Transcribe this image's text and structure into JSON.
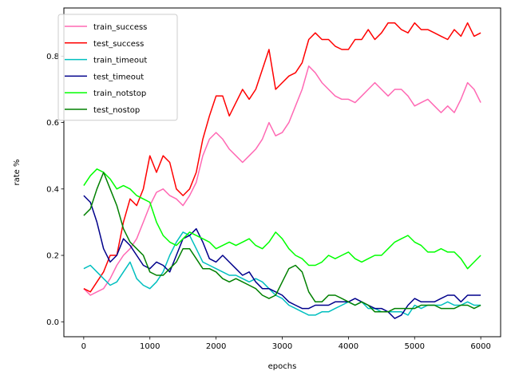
{
  "chart_data": {
    "type": "line",
    "title": "",
    "xlabel": "epochs",
    "ylabel": "rate %",
    "xlim": [
      -300,
      6300
    ],
    "ylim": [
      -0.045,
      0.945
    ],
    "xticks": [
      0,
      1000,
      2000,
      3000,
      4000,
      5000,
      6000
    ],
    "yticks": [
      0.0,
      0.2,
      0.4,
      0.6,
      0.8
    ],
    "xtick_labels": [
      "0",
      "1000",
      "2000",
      "3000",
      "4000",
      "5000",
      "6000"
    ],
    "ytick_labels": [
      "0.0",
      "0.2",
      "0.4",
      "0.6",
      "0.8"
    ],
    "grid": false,
    "legend_position": "top-left",
    "series": [
      {
        "name": "train_success",
        "color": "#ff69b4",
        "x": [
          0,
          100,
          200,
          300,
          400,
          500,
          600,
          700,
          800,
          900,
          1000,
          1100,
          1200,
          1300,
          1400,
          1500,
          1600,
          1700,
          1800,
          1900,
          2000,
          2100,
          2200,
          2300,
          2400,
          2500,
          2600,
          2700,
          2800,
          2900,
          3000,
          3100,
          3200,
          3300,
          3400,
          3500,
          3600,
          3700,
          3800,
          3900,
          4000,
          4100,
          4200,
          4300,
          4400,
          4500,
          4600,
          4700,
          4800,
          4900,
          5000,
          5100,
          5200,
          5300,
          5400,
          5500,
          5600,
          5700,
          5800,
          5900,
          6000
        ],
        "y": [
          0.1,
          0.08,
          0.09,
          0.1,
          0.13,
          0.17,
          0.2,
          0.22,
          0.25,
          0.3,
          0.35,
          0.39,
          0.4,
          0.38,
          0.37,
          0.35,
          0.38,
          0.42,
          0.5,
          0.55,
          0.57,
          0.55,
          0.52,
          0.5,
          0.48,
          0.5,
          0.52,
          0.55,
          0.6,
          0.56,
          0.57,
          0.6,
          0.65,
          0.7,
          0.77,
          0.75,
          0.72,
          0.7,
          0.68,
          0.67,
          0.67,
          0.66,
          0.68,
          0.7,
          0.72,
          0.7,
          0.68,
          0.7,
          0.7,
          0.68,
          0.65,
          0.66,
          0.67,
          0.65,
          0.63,
          0.65,
          0.63,
          0.67,
          0.72,
          0.7,
          0.66
        ]
      },
      {
        "name": "test_success",
        "color": "#ff0000",
        "x": [
          0,
          100,
          200,
          300,
          400,
          500,
          600,
          700,
          800,
          900,
          1000,
          1100,
          1200,
          1300,
          1400,
          1500,
          1600,
          1700,
          1800,
          1900,
          2000,
          2100,
          2200,
          2300,
          2400,
          2500,
          2600,
          2700,
          2800,
          2900,
          3000,
          3100,
          3200,
          3300,
          3400,
          3500,
          3600,
          3700,
          3800,
          3900,
          4000,
          4100,
          4200,
          4300,
          4400,
          4500,
          4600,
          4700,
          4800,
          4900,
          5000,
          5100,
          5200,
          5300,
          5400,
          5500,
          5600,
          5700,
          5800,
          5900,
          6000
        ],
        "y": [
          0.1,
          0.09,
          0.12,
          0.15,
          0.2,
          0.2,
          0.3,
          0.37,
          0.35,
          0.4,
          0.5,
          0.45,
          0.5,
          0.48,
          0.4,
          0.38,
          0.4,
          0.45,
          0.55,
          0.62,
          0.68,
          0.68,
          0.62,
          0.66,
          0.7,
          0.67,
          0.7,
          0.76,
          0.82,
          0.7,
          0.72,
          0.74,
          0.75,
          0.78,
          0.85,
          0.87,
          0.85,
          0.85,
          0.83,
          0.82,
          0.82,
          0.85,
          0.85,
          0.88,
          0.85,
          0.87,
          0.9,
          0.9,
          0.88,
          0.87,
          0.9,
          0.88,
          0.88,
          0.87,
          0.86,
          0.85,
          0.88,
          0.86,
          0.9,
          0.86,
          0.87
        ]
      },
      {
        "name": "train_timeout",
        "color": "#00bfbf",
        "x": [
          0,
          100,
          200,
          300,
          400,
          500,
          600,
          700,
          800,
          900,
          1000,
          1100,
          1200,
          1300,
          1400,
          1500,
          1600,
          1700,
          1800,
          1900,
          2000,
          2100,
          2200,
          2300,
          2400,
          2500,
          2600,
          2700,
          2800,
          2900,
          3000,
          3100,
          3200,
          3300,
          3400,
          3500,
          3600,
          3700,
          3800,
          3900,
          4000,
          4100,
          4200,
          4300,
          4400,
          4500,
          4600,
          4700,
          4800,
          4900,
          5000,
          5100,
          5200,
          5300,
          5400,
          5500,
          5600,
          5700,
          5800,
          5900,
          6000
        ],
        "y": [
          0.16,
          0.17,
          0.15,
          0.13,
          0.11,
          0.12,
          0.15,
          0.18,
          0.13,
          0.11,
          0.1,
          0.12,
          0.15,
          0.2,
          0.24,
          0.27,
          0.26,
          0.22,
          0.18,
          0.17,
          0.16,
          0.15,
          0.14,
          0.14,
          0.13,
          0.12,
          0.13,
          0.12,
          0.1,
          0.08,
          0.07,
          0.05,
          0.04,
          0.03,
          0.02,
          0.02,
          0.03,
          0.03,
          0.04,
          0.05,
          0.06,
          0.05,
          0.06,
          0.04,
          0.04,
          0.03,
          0.03,
          0.03,
          0.03,
          0.02,
          0.05,
          0.04,
          0.05,
          0.05,
          0.05,
          0.06,
          0.05,
          0.05,
          0.06,
          0.05,
          0.05
        ]
      },
      {
        "name": "test_timeout",
        "color": "#00008b",
        "x": [
          0,
          100,
          200,
          300,
          400,
          500,
          600,
          700,
          800,
          900,
          1000,
          1100,
          1200,
          1300,
          1400,
          1500,
          1600,
          1700,
          1800,
          1900,
          2000,
          2100,
          2200,
          2300,
          2400,
          2500,
          2600,
          2700,
          2800,
          2900,
          3000,
          3100,
          3200,
          3300,
          3400,
          3500,
          3600,
          3700,
          3800,
          3900,
          4000,
          4100,
          4200,
          4300,
          4400,
          4500,
          4600,
          4700,
          4800,
          4900,
          5000,
          5100,
          5200,
          5300,
          5400,
          5500,
          5600,
          5700,
          5800,
          5900,
          6000
        ],
        "y": [
          0.38,
          0.36,
          0.3,
          0.22,
          0.18,
          0.2,
          0.25,
          0.23,
          0.2,
          0.17,
          0.16,
          0.18,
          0.17,
          0.15,
          0.2,
          0.25,
          0.26,
          0.28,
          0.24,
          0.19,
          0.18,
          0.2,
          0.18,
          0.16,
          0.14,
          0.15,
          0.12,
          0.1,
          0.1,
          0.09,
          0.08,
          0.06,
          0.05,
          0.04,
          0.04,
          0.05,
          0.05,
          0.05,
          0.06,
          0.06,
          0.06,
          0.07,
          0.06,
          0.05,
          0.04,
          0.04,
          0.03,
          0.01,
          0.02,
          0.05,
          0.07,
          0.06,
          0.06,
          0.06,
          0.07,
          0.08,
          0.08,
          0.06,
          0.08,
          0.08,
          0.08
        ]
      },
      {
        "name": "train_notstop",
        "color": "#00ff00",
        "x": [
          0,
          100,
          200,
          300,
          400,
          500,
          600,
          700,
          800,
          900,
          1000,
          1100,
          1200,
          1300,
          1400,
          1500,
          1600,
          1700,
          1800,
          1900,
          2000,
          2100,
          2200,
          2300,
          2400,
          2500,
          2600,
          2700,
          2800,
          2900,
          3000,
          3100,
          3200,
          3300,
          3400,
          3500,
          3600,
          3700,
          3800,
          3900,
          4000,
          4100,
          4200,
          4300,
          4400,
          4500,
          4600,
          4700,
          4800,
          4900,
          5000,
          5100,
          5200,
          5300,
          5400,
          5500,
          5600,
          5700,
          5800,
          5900,
          6000
        ],
        "y": [
          0.41,
          0.44,
          0.46,
          0.45,
          0.43,
          0.4,
          0.41,
          0.4,
          0.38,
          0.37,
          0.36,
          0.3,
          0.26,
          0.24,
          0.23,
          0.25,
          0.27,
          0.26,
          0.25,
          0.24,
          0.22,
          0.23,
          0.24,
          0.23,
          0.24,
          0.25,
          0.23,
          0.22,
          0.24,
          0.27,
          0.25,
          0.22,
          0.2,
          0.19,
          0.17,
          0.17,
          0.18,
          0.2,
          0.19,
          0.2,
          0.21,
          0.19,
          0.18,
          0.19,
          0.2,
          0.2,
          0.22,
          0.24,
          0.25,
          0.26,
          0.24,
          0.23,
          0.21,
          0.21,
          0.22,
          0.21,
          0.21,
          0.19,
          0.16,
          0.18,
          0.2
        ]
      },
      {
        "name": "test_nostop",
        "color": "#008000",
        "x": [
          0,
          100,
          200,
          300,
          400,
          500,
          600,
          700,
          800,
          900,
          1000,
          1100,
          1200,
          1300,
          1400,
          1500,
          1600,
          1700,
          1800,
          1900,
          2000,
          2100,
          2200,
          2300,
          2400,
          2500,
          2600,
          2700,
          2800,
          2900,
          3000,
          3100,
          3200,
          3300,
          3400,
          3500,
          3600,
          3700,
          3800,
          3900,
          4000,
          4100,
          4200,
          4300,
          4400,
          4500,
          4600,
          4700,
          4800,
          4900,
          5000,
          5100,
          5200,
          5300,
          5400,
          5500,
          5600,
          5700,
          5800,
          5900,
          6000
        ],
        "y": [
          0.32,
          0.34,
          0.4,
          0.45,
          0.4,
          0.35,
          0.28,
          0.24,
          0.22,
          0.2,
          0.15,
          0.14,
          0.14,
          0.16,
          0.18,
          0.22,
          0.22,
          0.19,
          0.16,
          0.16,
          0.15,
          0.13,
          0.12,
          0.13,
          0.12,
          0.11,
          0.1,
          0.08,
          0.07,
          0.08,
          0.12,
          0.16,
          0.17,
          0.15,
          0.09,
          0.06,
          0.06,
          0.08,
          0.08,
          0.07,
          0.06,
          0.05,
          0.06,
          0.05,
          0.03,
          0.03,
          0.03,
          0.04,
          0.04,
          0.04,
          0.04,
          0.05,
          0.05,
          0.05,
          0.04,
          0.04,
          0.04,
          0.05,
          0.05,
          0.04,
          0.05
        ]
      }
    ]
  }
}
